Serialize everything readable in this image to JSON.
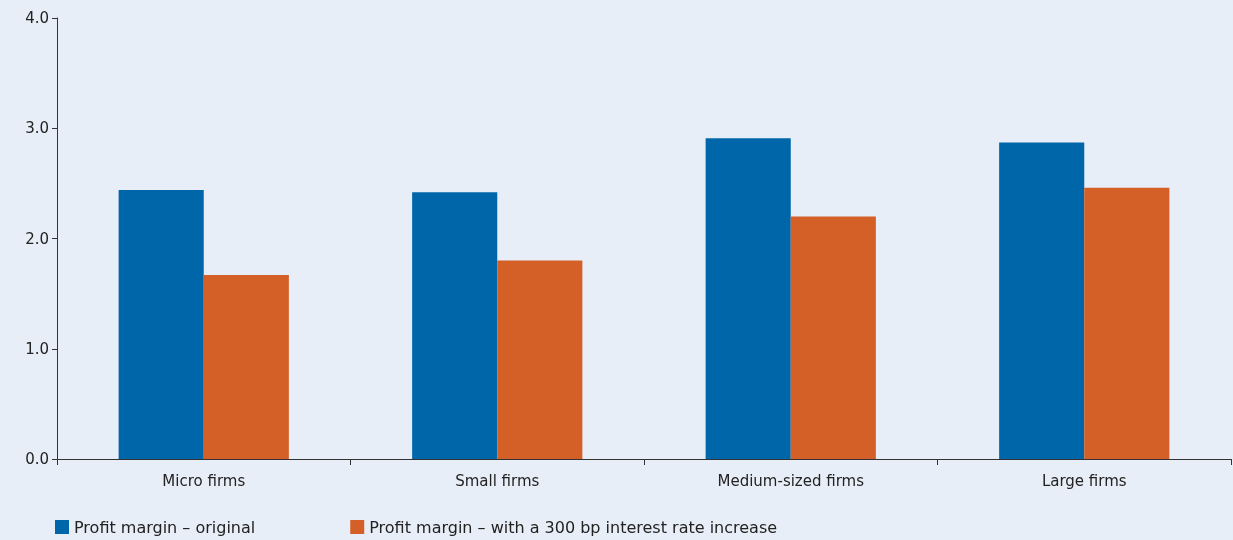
{
  "chart_data": {
    "type": "bar",
    "categories": [
      "Micro firms",
      "Small firms",
      "Medium-sized firms",
      "Large firms"
    ],
    "series": [
      {
        "name": "Profit margin – original",
        "color": "#0066aa",
        "values": [
          2.44,
          2.42,
          2.91,
          2.87
        ]
      },
      {
        "name": "Profit margin – with a 300 bp interest rate increase",
        "color": "#d45f27",
        "values": [
          1.67,
          1.8,
          2.2,
          2.46
        ]
      }
    ],
    "ylim": [
      0,
      4
    ],
    "yticks": [
      {
        "value": 0,
        "label": "0.0"
      },
      {
        "value": 1,
        "label": "1.0"
      },
      {
        "value": 2,
        "label": "2.0"
      },
      {
        "value": 3,
        "label": "3.0"
      },
      {
        "value": 4,
        "label": "4.0"
      }
    ],
    "grid": false,
    "legend": "bottom left"
  }
}
